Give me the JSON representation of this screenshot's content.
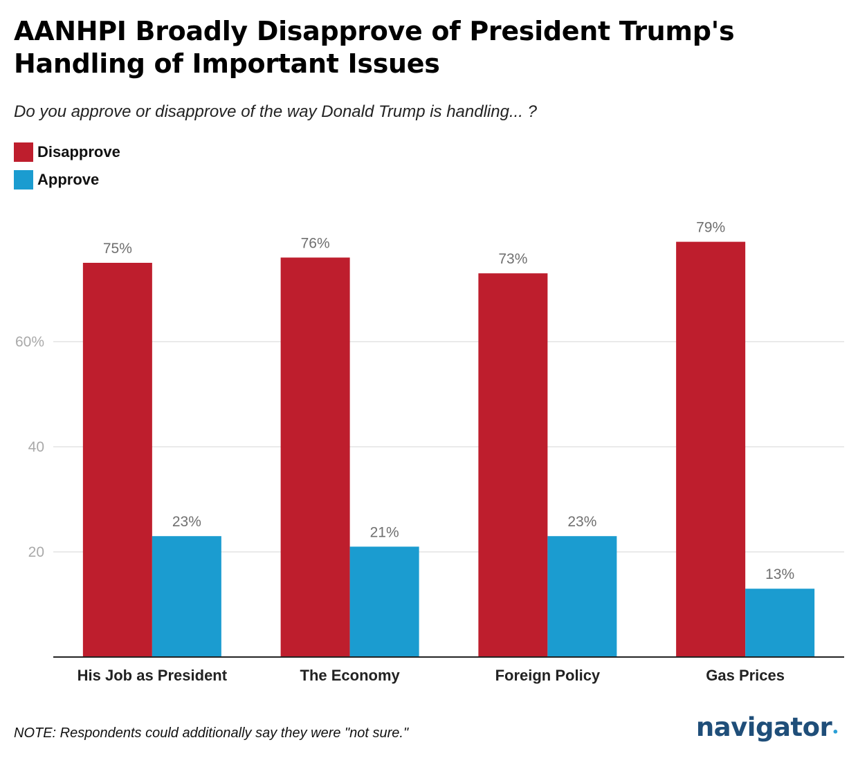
{
  "title": "AANHPI Broadly Disapprove of President Trump's Handling of Important Issues",
  "subtitle": "Do you approve or disapprove of the way Donald Trump is handling... ?",
  "legend": [
    {
      "label": "Disapprove",
      "color": "#be1e2d"
    },
    {
      "label": "Approve",
      "color": "#1b9cd0"
    }
  ],
  "note": "NOTE: Respondents could additionally say they were \"not sure.\"",
  "brand": "navigator",
  "chart_data": {
    "type": "bar",
    "title": "AANHPI Broadly Disapprove of President Trump's Handling of Important Issues",
    "categories": [
      "His Job as President",
      "The Economy",
      "Foreign Policy",
      "Gas Prices"
    ],
    "series": [
      {
        "name": "Disapprove",
        "values": [
          75,
          76,
          73,
          79
        ],
        "color": "#be1e2d"
      },
      {
        "name": "Approve",
        "values": [
          23,
          21,
          23,
          13
        ],
        "color": "#1b9cd0"
      }
    ],
    "data_label_suffix": "%",
    "yticks": [
      {
        "value": 20,
        "label": "20"
      },
      {
        "value": 40,
        "label": "40"
      },
      {
        "value": 60,
        "label": "60%"
      }
    ],
    "ylim": [
      0,
      80
    ],
    "xlabel": "",
    "ylabel": "",
    "grid": true,
    "legend_position": "top-left"
  }
}
